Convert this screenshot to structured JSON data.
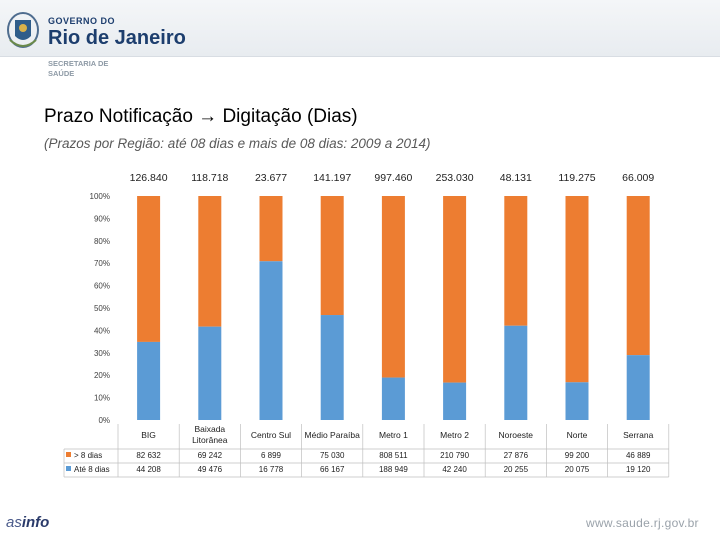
{
  "header": {
    "gov_line1": "GOVERNO DO",
    "gov_line2": "Rio de Janeiro",
    "sec_line1": "SECRETARIA DE",
    "sec_line2": "SAÚDE"
  },
  "title": "Prazo Notificação → Digitação (Dias)",
  "subtitle": "(Prazos por Região: até 08 dias e mais de 08 dias: 2009 a 2014)",
  "footer": {
    "logo_a": "as",
    "logo_b": "info",
    "url": "www.saude.rj.gov.br"
  },
  "colors": {
    "more_than_8": "#ed7d31",
    "up_to_8": "#5b9bd5"
  },
  "chart_data": {
    "type": "stacked-bar-100",
    "title": "Prazo Notificação → Digitação (Dias)",
    "categories": [
      "BIG",
      "Baixada Litorânea",
      "Centro Sul",
      "Médio Paraíba",
      "Metro 1",
      "Metro 2",
      "Noroeste",
      "Norte",
      "Serrana"
    ],
    "category_lines": [
      [
        "BIG"
      ],
      [
        "Baixada",
        "Litorânea"
      ],
      [
        "Centro Sul"
      ],
      [
        "Médio Paraíba"
      ],
      [
        "Metro 1"
      ],
      [
        "Metro 2"
      ],
      [
        "Noroeste"
      ],
      [
        "Norte"
      ],
      [
        "Serrana"
      ]
    ],
    "totals": [
      "126.840",
      "118.718",
      "23.677",
      "141.197",
      "997.460",
      "253.030",
      "48.131",
      "119.275",
      "66.009"
    ],
    "yticks": [
      "0%",
      "10%",
      "20%",
      "30%",
      "40%",
      "50%",
      "60%",
      "70%",
      "80%",
      "90%",
      "100%"
    ],
    "ylim": [
      0,
      100
    ],
    "series": [
      {
        "name": "Até 8 dias",
        "color": "#5b9bd5",
        "values": [
          44208,
          49476,
          16778,
          66167,
          188949,
          42240,
          20255,
          20075,
          19120
        ],
        "labels": [
          "44 208",
          "49 476",
          "16 778",
          "66 167",
          "188 949",
          "42 240",
          "20 255",
          "20 075",
          "19 120"
        ]
      },
      {
        "name": "> 8 dias",
        "color": "#ed7d31",
        "values": [
          82632,
          69242,
          6899,
          75030,
          808511,
          210790,
          27876,
          99200,
          46889
        ],
        "labels": [
          "82 632",
          "69 242",
          "6 899",
          "75 030",
          "808 511",
          "210 790",
          "27 876",
          "99 200",
          "46 889"
        ]
      }
    ],
    "table_rows_order": [
      "> 8 dias",
      "Até 8 dias"
    ]
  }
}
